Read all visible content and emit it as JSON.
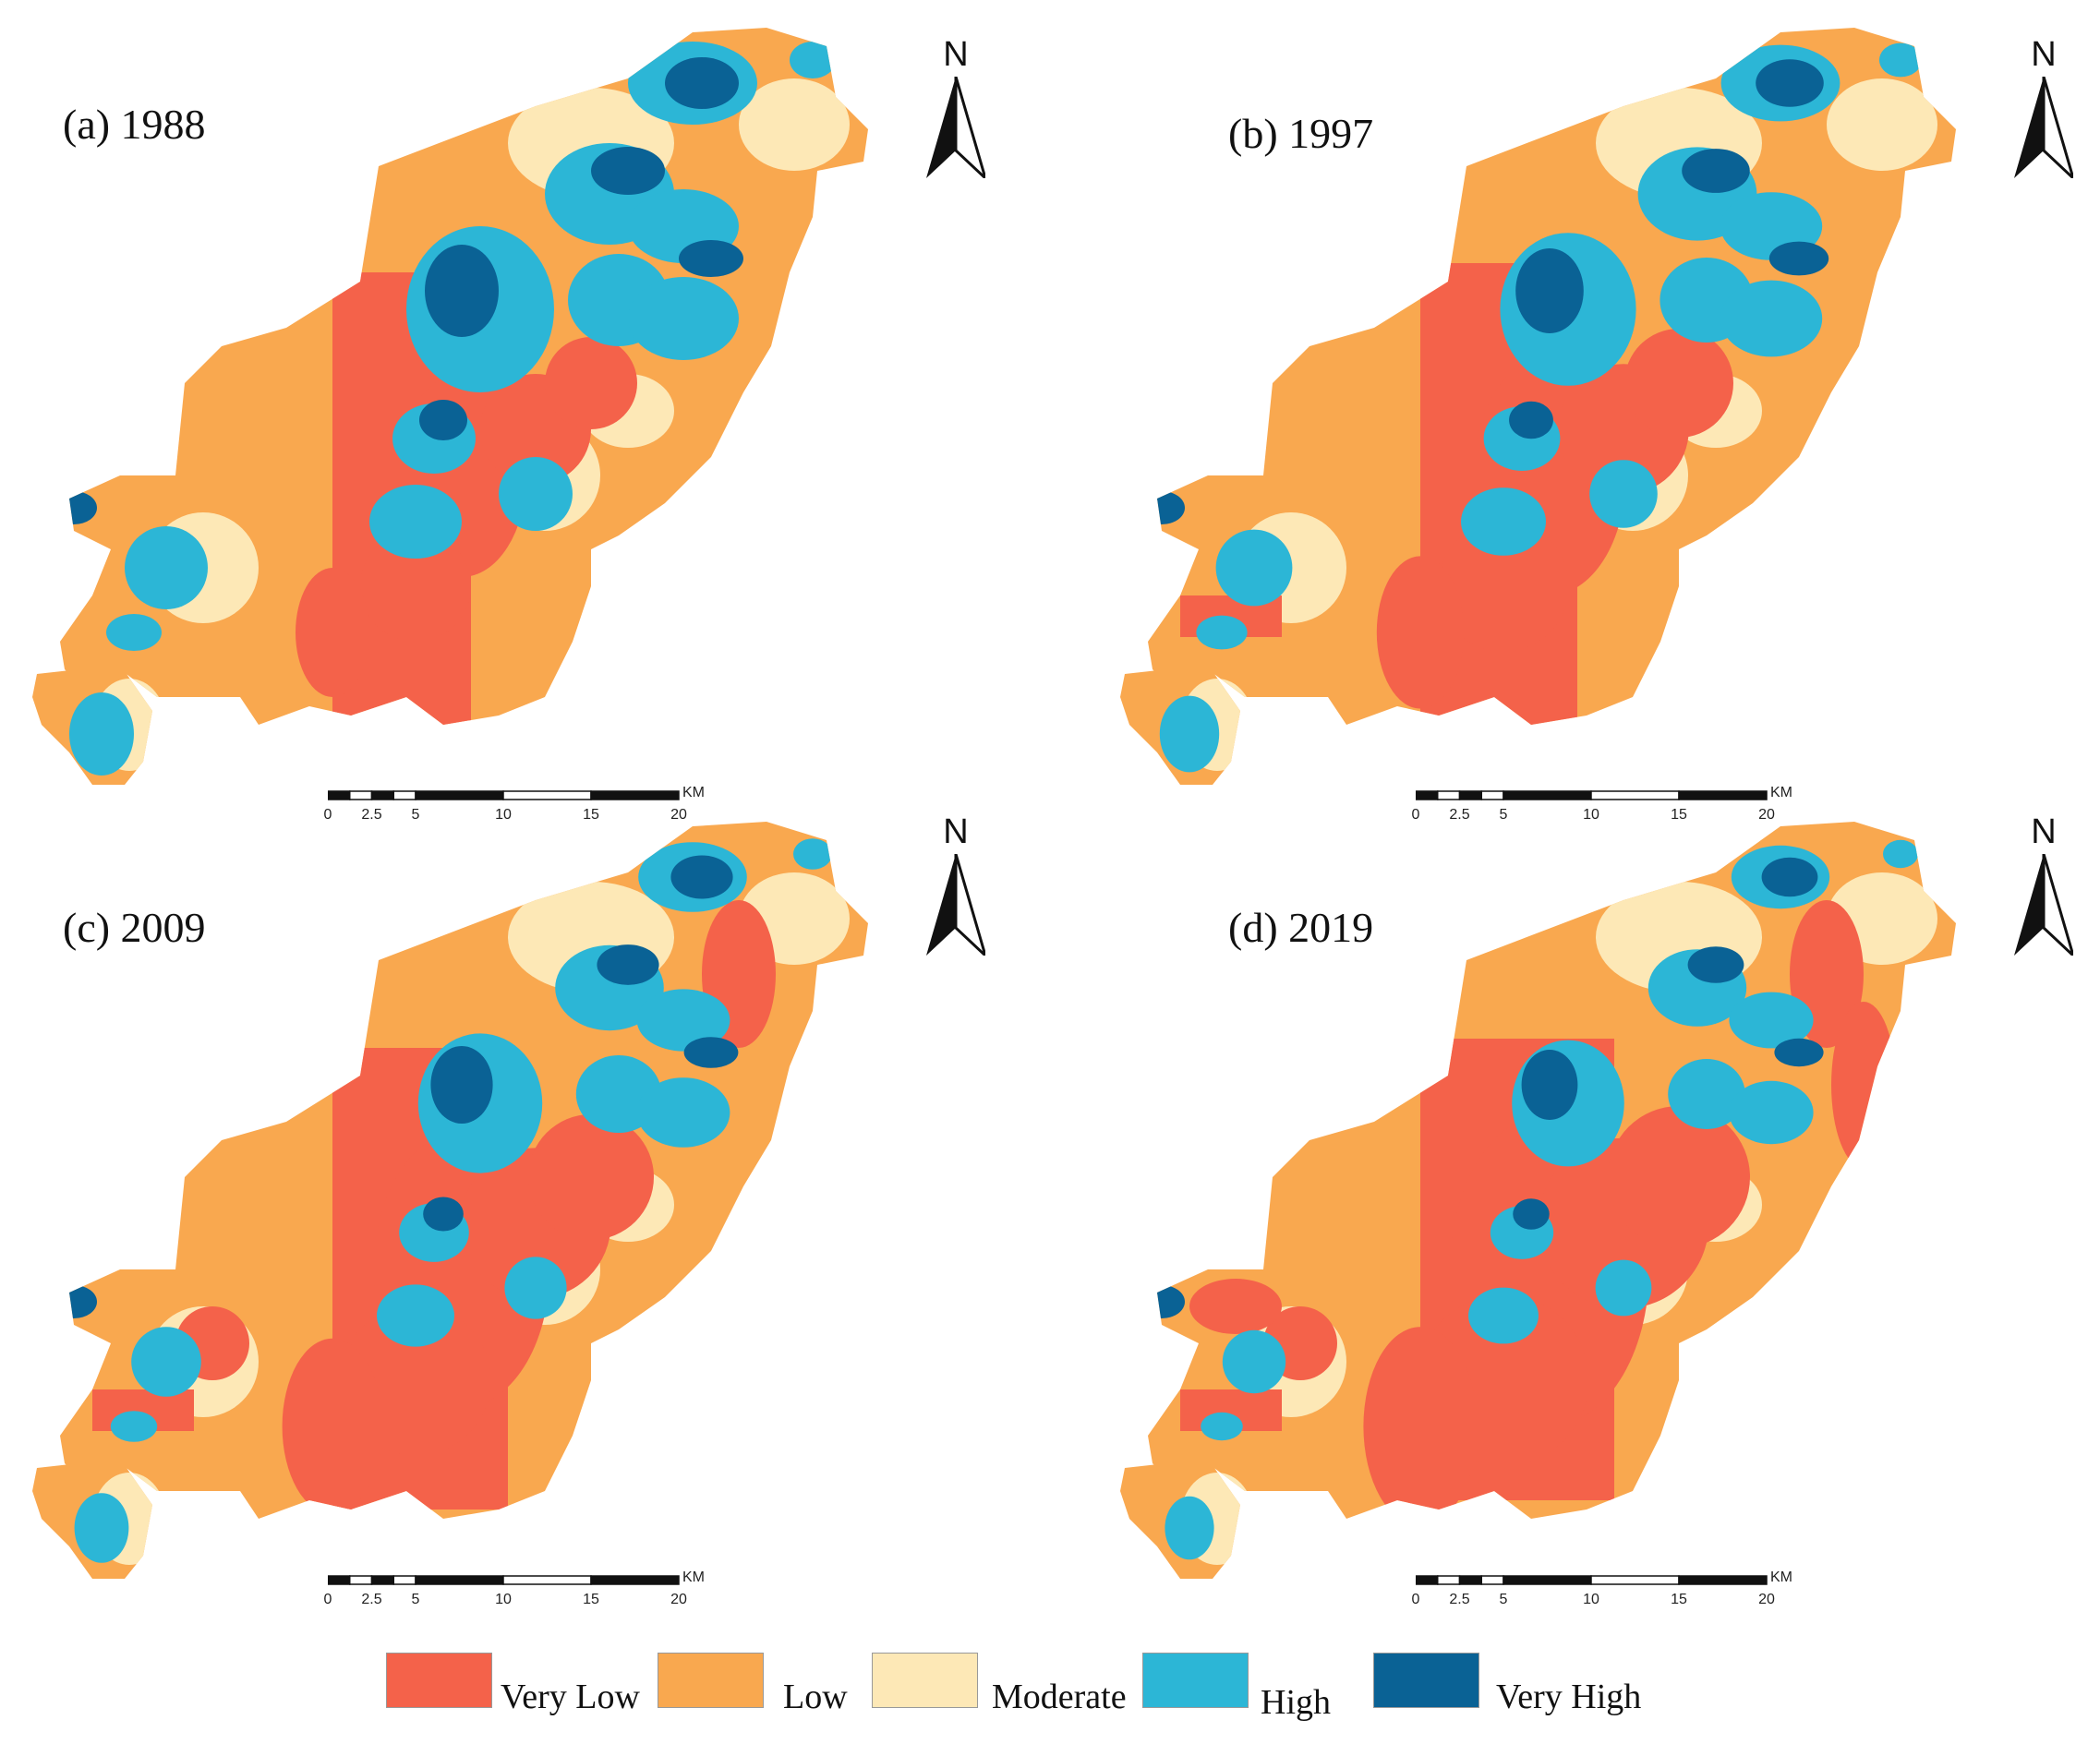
{
  "panels": [
    {
      "label": "(a) 1988",
      "north": "N",
      "scale_ticks": [
        "0",
        "2.5",
        "5",
        "10",
        "15",
        "20"
      ],
      "scale_unit": "KM"
    },
    {
      "label": "(b) 1997",
      "north": "N",
      "scale_ticks": [
        "0",
        "2.5",
        "5",
        "10",
        "15",
        "20"
      ],
      "scale_unit": "KM"
    },
    {
      "label": "(c) 2009",
      "north": "N",
      "scale_ticks": [
        "0",
        "2.5",
        "5",
        "10",
        "15",
        "20"
      ],
      "scale_unit": "KM"
    },
    {
      "label": "(d) 2019",
      "north": "N",
      "scale_ticks": [
        "0",
        "2.5",
        "5",
        "10",
        "15",
        "20"
      ],
      "scale_unit": "KM"
    }
  ],
  "legend": [
    {
      "label": "Very Low",
      "color": "#f4624a"
    },
    {
      "label": "Low",
      "color": "#f9a84f"
    },
    {
      "label": "Moderate",
      "color": "#fde8b6"
    },
    {
      "label": "High",
      "color": "#2cb6d6"
    },
    {
      "label": "Very High",
      "color": "#0a6295"
    }
  ]
}
